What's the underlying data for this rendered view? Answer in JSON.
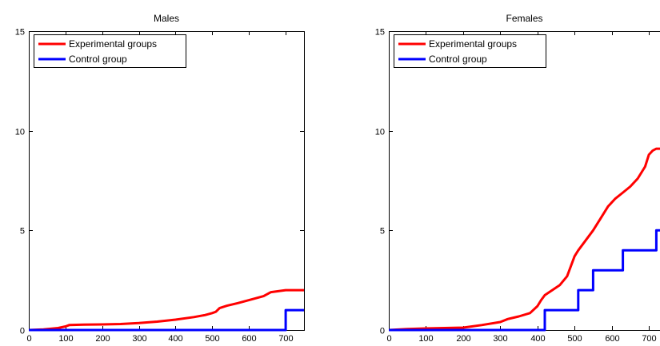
{
  "chart_data": [
    {
      "type": "line",
      "title": "Males",
      "xlabel": "",
      "ylabel": "",
      "xlim": [
        0,
        750
      ],
      "ylim": [
        0,
        15
      ],
      "xticks": [
        0,
        100,
        200,
        300,
        400,
        500,
        600,
        700
      ],
      "yticks": [
        0,
        5,
        10,
        15
      ],
      "grid": false,
      "legend": "top-left",
      "series": [
        {
          "name": "Experimental groups",
          "color": "#ff0000",
          "step": false,
          "x": [
            0,
            40,
            80,
            100,
            110,
            150,
            200,
            250,
            300,
            350,
            400,
            450,
            480,
            500,
            510,
            520,
            540,
            570,
            600,
            620,
            640,
            660,
            680,
            700,
            720,
            750
          ],
          "y": [
            0,
            0.03,
            0.1,
            0.18,
            0.25,
            0.27,
            0.28,
            0.3,
            0.35,
            0.42,
            0.52,
            0.65,
            0.75,
            0.85,
            0.92,
            1.1,
            1.22,
            1.35,
            1.5,
            1.6,
            1.7,
            1.9,
            1.95,
            2.0,
            2.0,
            2.0
          ]
        },
        {
          "name": "Control group",
          "color": "#0000ff",
          "step": true,
          "x": [
            0,
            700,
            750
          ],
          "y": [
            0,
            1,
            1
          ]
        }
      ]
    },
    {
      "type": "line",
      "title": "Females",
      "xlabel": "",
      "ylabel": "",
      "xlim": [
        0,
        730
      ],
      "ylim": [
        0,
        15
      ],
      "xticks": [
        0,
        100,
        200,
        300,
        400,
        500,
        600,
        700
      ],
      "yticks": [
        0,
        5,
        10,
        15
      ],
      "grid": false,
      "legend": "top-left",
      "series": [
        {
          "name": "Experimental groups",
          "color": "#ff0000",
          "step": false,
          "x": [
            0,
            50,
            100,
            150,
            200,
            250,
            300,
            320,
            350,
            380,
            400,
            410,
            420,
            440,
            460,
            480,
            500,
            510,
            530,
            550,
            570,
            590,
            610,
            630,
            650,
            670,
            690,
            700,
            710,
            720,
            730
          ],
          "y": [
            0,
            0.05,
            0.08,
            0.1,
            0.12,
            0.25,
            0.4,
            0.55,
            0.68,
            0.85,
            1.2,
            1.5,
            1.75,
            2.0,
            2.25,
            2.7,
            3.7,
            4.0,
            4.5,
            5.0,
            5.6,
            6.2,
            6.6,
            6.9,
            7.2,
            7.6,
            8.2,
            8.8,
            9.0,
            9.1,
            9.1
          ]
        },
        {
          "name": "Control group",
          "color": "#0000ff",
          "step": true,
          "x": [
            0,
            420,
            510,
            550,
            630,
            720,
            730
          ],
          "y": [
            0,
            1,
            2,
            3,
            4,
            5,
            5
          ]
        }
      ]
    }
  ]
}
